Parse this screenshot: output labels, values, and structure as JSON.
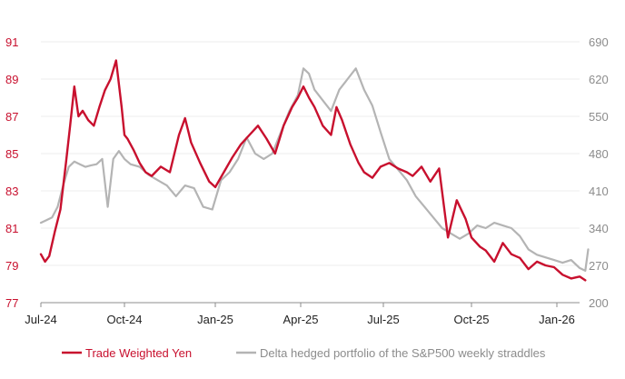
{
  "chart_data": {
    "type": "line",
    "title": "",
    "x_tick_labels": [
      "Jul-24",
      "Oct-24",
      "Jan-25",
      "Apr-25",
      "Jul-25",
      "Oct-25",
      "Jan-26"
    ],
    "x_range": [
      0,
      19.2
    ],
    "left_axis": {
      "ticks": [
        77,
        79,
        81,
        83,
        85,
        87,
        89,
        91
      ],
      "ylim": [
        77,
        91
      ],
      "color": "#c8102e"
    },
    "right_axis": {
      "ticks": [
        200,
        270,
        340,
        410,
        480,
        550,
        620,
        690
      ],
      "ylim": [
        200,
        690
      ],
      "color": "#8c8c8c"
    },
    "gridlines": true,
    "legend_position": "bottom",
    "series": [
      {
        "name": "Trade Weighted Yen",
        "axis": "left",
        "color": "#c8102e",
        "x": [
          0,
          0.15,
          0.3,
          0.5,
          0.7,
          0.9,
          1.05,
          1.2,
          1.35,
          1.5,
          1.7,
          1.9,
          2.1,
          2.3,
          2.5,
          2.7,
          2.9,
          3.0,
          3.1,
          3.3,
          3.5,
          3.7,
          3.9,
          4.2,
          4.5,
          4.8,
          5.0,
          5.2,
          5.5,
          5.8,
          6.0,
          6.3,
          6.6,
          6.9,
          7.2,
          7.5,
          7.8,
          8.1,
          8.4,
          8.7,
          8.9,
          9.1,
          9.3,
          9.5,
          9.8,
          10.1,
          10.3,
          10.5,
          10.8,
          11.1,
          11.3,
          11.6,
          11.9,
          12.2,
          12.5,
          12.8,
          13.0,
          13.3,
          13.6,
          13.9,
          14.2,
          14.5,
          14.8,
          15.0,
          15.3,
          15.5,
          15.8,
          16.1,
          16.4,
          16.7,
          17.0,
          17.3,
          17.6,
          17.9,
          18.2,
          18.5,
          18.8,
          19.0
        ],
        "y": [
          79.6,
          79.2,
          79.5,
          80.8,
          82.0,
          84.5,
          86.5,
          88.6,
          87.0,
          87.3,
          86.8,
          86.5,
          87.5,
          88.4,
          89.0,
          90.0,
          87.5,
          86.0,
          85.8,
          85.2,
          84.5,
          84.0,
          83.8,
          84.3,
          84.0,
          86.0,
          86.9,
          85.6,
          84.5,
          83.5,
          83.2,
          84.0,
          84.8,
          85.5,
          86.0,
          86.5,
          85.8,
          85.0,
          86.5,
          87.5,
          88.0,
          88.6,
          88.0,
          87.5,
          86.5,
          86.0,
          87.5,
          86.8,
          85.5,
          84.5,
          84.0,
          83.7,
          84.3,
          84.5,
          84.2,
          84.0,
          83.8,
          84.3,
          83.5,
          84.2,
          80.5,
          82.5,
          81.5,
          80.5,
          80.0,
          79.8,
          79.2,
          80.2,
          79.6,
          79.4,
          78.8,
          79.2,
          79.0,
          78.9,
          78.5,
          78.3,
          78.4,
          78.2
        ]
      },
      {
        "name": "Delta hedged portfolio of the S&P500 weekly straddles",
        "axis": "right",
        "color": "#b4b4b4",
        "x": [
          0,
          0.2,
          0.4,
          0.6,
          0.8,
          1.0,
          1.2,
          1.4,
          1.6,
          1.8,
          2.0,
          2.2,
          2.4,
          2.6,
          2.8,
          3.0,
          3.2,
          3.5,
          3.8,
          4.1,
          4.4,
          4.7,
          5.0,
          5.3,
          5.6,
          5.9,
          6.2,
          6.5,
          6.8,
          7.1,
          7.4,
          7.7,
          8.0,
          8.3,
          8.6,
          8.9,
          9.1,
          9.3,
          9.5,
          9.8,
          10.1,
          10.4,
          10.7,
          11.0,
          11.3,
          11.6,
          11.9,
          12.2,
          12.5,
          12.8,
          13.1,
          13.4,
          13.7,
          14.0,
          14.3,
          14.6,
          14.9,
          15.2,
          15.5,
          15.8,
          16.1,
          16.4,
          16.7,
          17.0,
          17.3,
          17.6,
          17.9,
          18.2,
          18.5,
          18.8,
          19.0,
          19.1
        ],
        "y": [
          350,
          355,
          360,
          380,
          420,
          455,
          465,
          460,
          455,
          458,
          460,
          470,
          380,
          470,
          485,
          470,
          460,
          455,
          440,
          430,
          420,
          400,
          420,
          415,
          380,
          375,
          430,
          445,
          470,
          510,
          480,
          470,
          480,
          520,
          560,
          590,
          640,
          630,
          600,
          580,
          560,
          600,
          620,
          640,
          600,
          570,
          520,
          470,
          450,
          430,
          400,
          380,
          360,
          340,
          330,
          320,
          330,
          345,
          340,
          350,
          345,
          340,
          325,
          300,
          290,
          285,
          280,
          275,
          280,
          265,
          260,
          300
        ]
      }
    ]
  },
  "legend": {
    "items": [
      {
        "label": "Trade Weighted Yen",
        "color": "#c8102e"
      },
      {
        "label": "Delta hedged portfolio of the S&P500 weekly straddles",
        "color": "#b4b4b4"
      }
    ]
  }
}
